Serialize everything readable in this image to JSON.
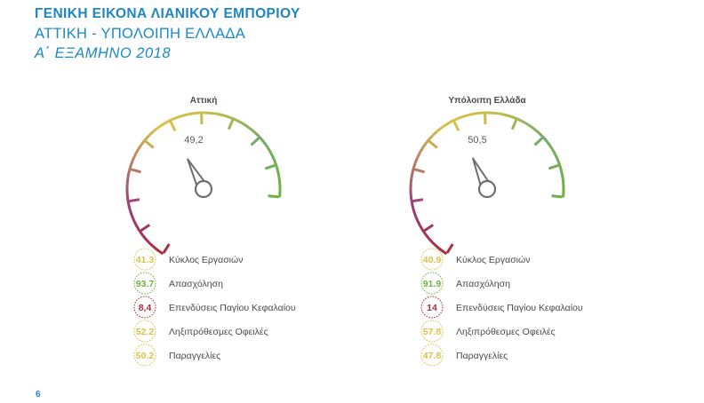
{
  "header": {
    "title": "ΓΕΝΙΚΗ ΕΙΚΟΝΑ ΛΙΑΝΙΚΟΥ ΕΜΠΟΡΙΟΥ",
    "subtitle": "ΑΤΤΙΚΗ - ΥΠΟΛΟΙΠΗ ΕΛΛΑΔΑ",
    "period": "Α΄ ΕΞΑΜΗΝΟ 2018"
  },
  "page_number": "6",
  "colors": {
    "low": "#a8323c",
    "mid": "#d8c24a",
    "high": "#6db33f",
    "needle": "#6e6e6e",
    "label": "#4a4a4a"
  },
  "chart_data": [
    {
      "type": "gauge",
      "title": "Αττική",
      "value": 49.2,
      "value_label": "49,2",
      "range": [
        0,
        100
      ],
      "indicators": [
        {
          "label": "Κύκλος Εργασιών",
          "value": 41.3,
          "value_label": "41.3",
          "color": "#d8c24a"
        },
        {
          "label": "Απασχόληση",
          "value": 93.7,
          "value_label": "93.7",
          "color": "#6db33f"
        },
        {
          "label": "Επενδύσεις Παγίου Κεφαλαίου",
          "value": 8.4,
          "value_label": "8,4",
          "color": "#a8323c"
        },
        {
          "label": "Ληξιπρόθεσμες Οφειλές",
          "value": 52.2,
          "value_label": "52.2",
          "color": "#d8c24a"
        },
        {
          "label": "Παραγγελίες",
          "value": 50.2,
          "value_label": "50.2",
          "color": "#d8c24a"
        }
      ]
    },
    {
      "type": "gauge",
      "title": "Υπόλοιπη Ελλάδα",
      "value": 50.5,
      "value_label": "50,5",
      "range": [
        0,
        100
      ],
      "indicators": [
        {
          "label": "Κύκλος Εργασιών",
          "value": 40.9,
          "value_label": "40.9",
          "color": "#d8c24a"
        },
        {
          "label": "Απασχόληση",
          "value": 91.9,
          "value_label": "91.9",
          "color": "#6db33f"
        },
        {
          "label": "Επενδύσεις Παγίου Κεφαλαίου",
          "value": 14,
          "value_label": "14",
          "color": "#a8323c"
        },
        {
          "label": "Ληξιπρόθεσμες Οφειλές",
          "value": 57.8,
          "value_label": "57.8",
          "color": "#d8c24a"
        },
        {
          "label": "Παραγγελίες",
          "value": 47.8,
          "value_label": "47.8",
          "color": "#d8c24a"
        }
      ]
    }
  ]
}
